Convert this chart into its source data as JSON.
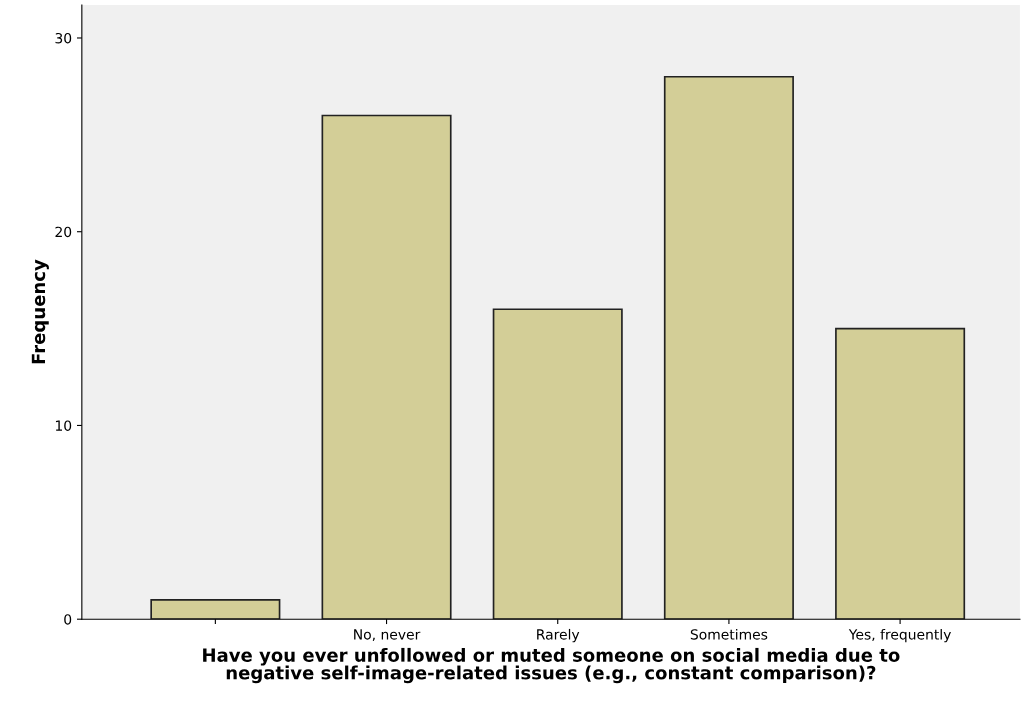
{
  "chart_data": {
    "type": "bar",
    "xlabel": "Have you ever unfollowed or muted someone on social media due to\nnegative self-image-related issues (e.g., constant comparison)?",
    "ylabel": "Frequency",
    "categories": [
      null,
      "No, never",
      "Rarely",
      "Sometimes",
      "Yes, frequently"
    ],
    "values": [
      1,
      26,
      16,
      28,
      15
    ],
    "color": "#d3ce97",
    "ylim": [
      0,
      31.7
    ],
    "yticks": [
      0,
      10,
      20,
      30
    ],
    "grid": false
  }
}
